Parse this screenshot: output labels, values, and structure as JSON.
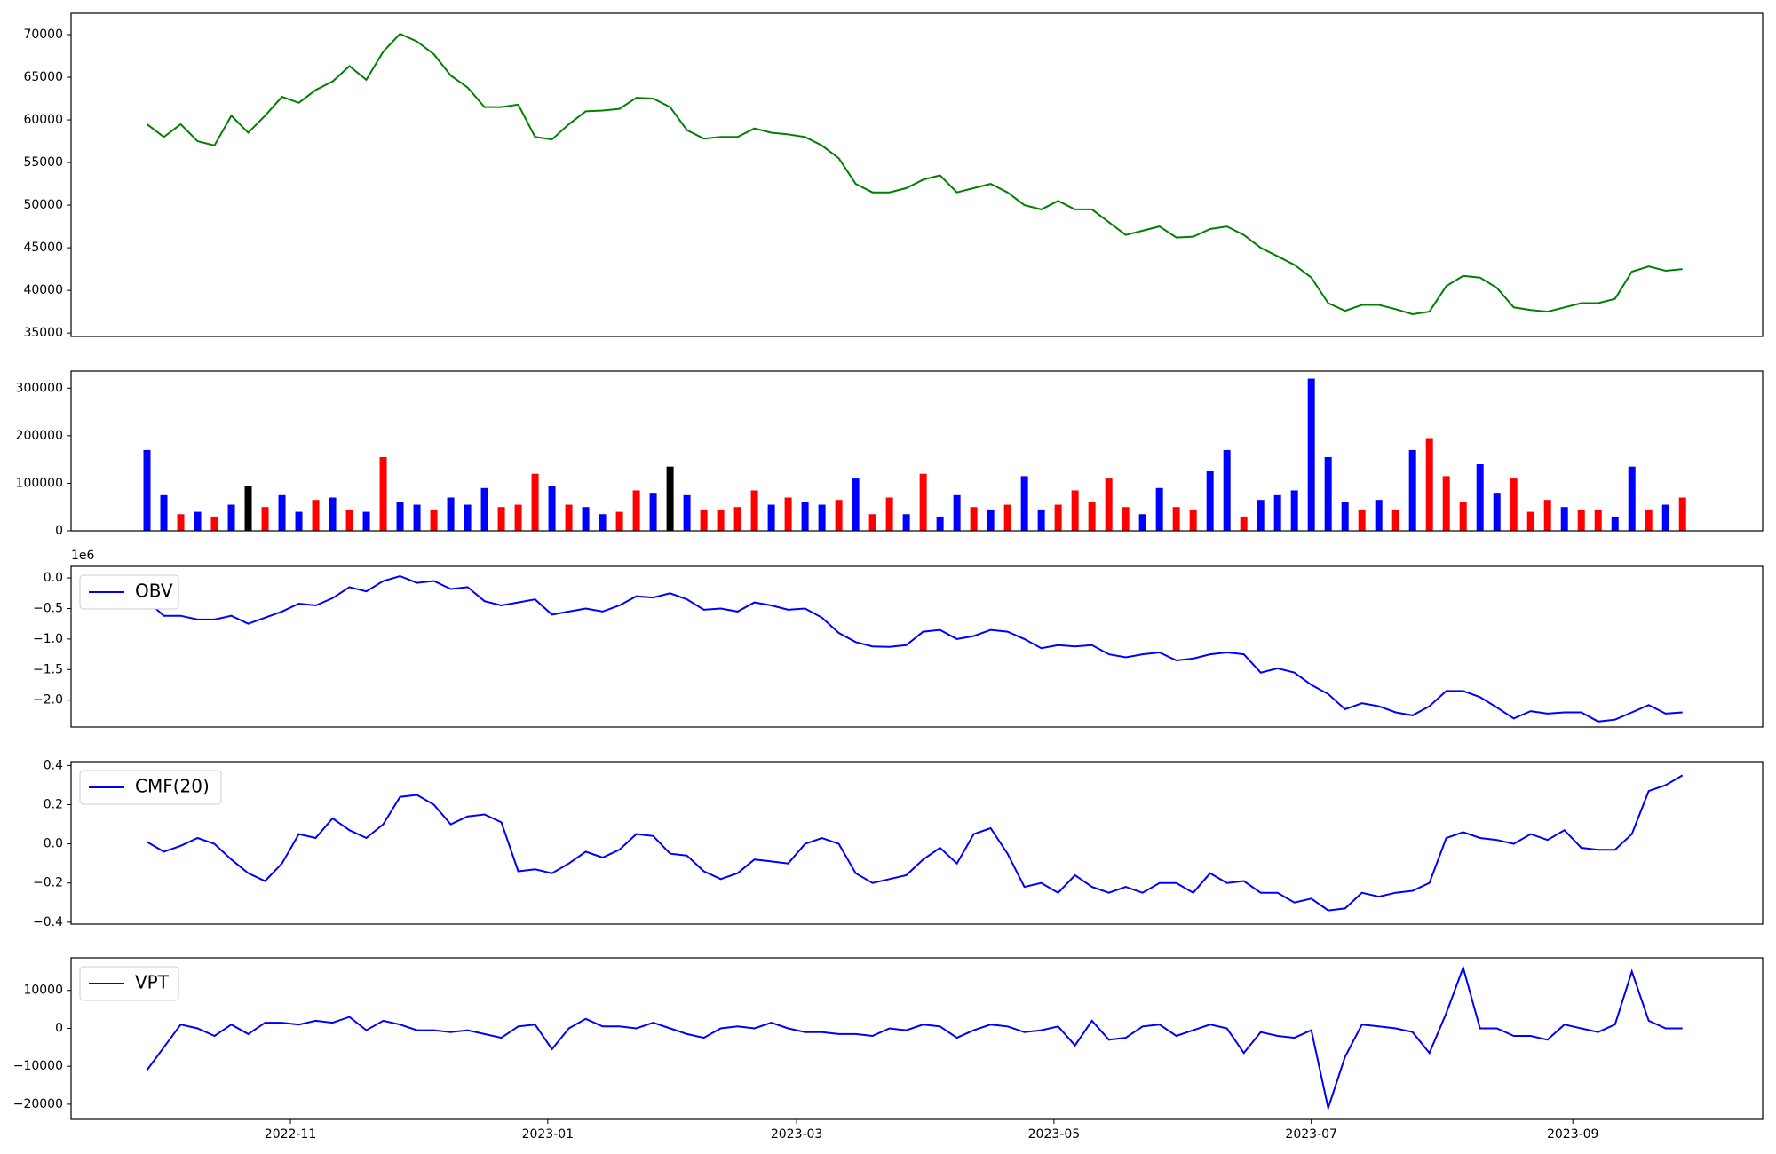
{
  "chart_data": {
    "type": "panels",
    "x": [
      "2022-09-28",
      "2022-10-02",
      "2022-10-06",
      "2022-10-10",
      "2022-10-14",
      "2022-10-18",
      "2022-10-22",
      "2022-10-26",
      "2022-10-30",
      "2022-11-03",
      "2022-11-07",
      "2022-11-11",
      "2022-11-15",
      "2022-11-19",
      "2022-11-23",
      "2022-11-27",
      "2022-12-01",
      "2022-12-05",
      "2022-12-09",
      "2022-12-13",
      "2022-12-17",
      "2022-12-21",
      "2022-12-25",
      "2022-12-29",
      "2023-01-02",
      "2023-01-06",
      "2023-01-10",
      "2023-01-14",
      "2023-01-18",
      "2023-01-22",
      "2023-01-26",
      "2023-01-30",
      "2023-02-03",
      "2023-02-07",
      "2023-02-11",
      "2023-02-15",
      "2023-02-19",
      "2023-02-23",
      "2023-02-27",
      "2023-03-03",
      "2023-03-07",
      "2023-03-11",
      "2023-03-15",
      "2023-03-19",
      "2023-03-23",
      "2023-03-27",
      "2023-03-31",
      "2023-04-04",
      "2023-04-08",
      "2023-04-12",
      "2023-04-16",
      "2023-04-20",
      "2023-04-24",
      "2023-04-28",
      "2023-05-02",
      "2023-05-06",
      "2023-05-10",
      "2023-05-14",
      "2023-05-18",
      "2023-05-22",
      "2023-05-26",
      "2023-05-30",
      "2023-06-03",
      "2023-06-07",
      "2023-06-11",
      "2023-06-15",
      "2023-06-19",
      "2023-06-23",
      "2023-06-27",
      "2023-07-01",
      "2023-07-05",
      "2023-07-09",
      "2023-07-13",
      "2023-07-17",
      "2023-07-21",
      "2023-07-25",
      "2023-07-29",
      "2023-08-02",
      "2023-08-06",
      "2023-08-10",
      "2023-08-14",
      "2023-08-18",
      "2023-08-22",
      "2023-08-26",
      "2023-08-30",
      "2023-09-03",
      "2023-09-07",
      "2023-09-11",
      "2023-09-15",
      "2023-09-19",
      "2023-09-23",
      "2023-09-27"
    ],
    "xlim": [
      "2022-09-10",
      "2023-10-16"
    ],
    "xticks": [
      {
        "value": "2022-11-01",
        "label": "2022-11"
      },
      {
        "value": "2023-01-01",
        "label": "2023-01"
      },
      {
        "value": "2023-03-01",
        "label": "2023-03"
      },
      {
        "value": "2023-05-01",
        "label": "2023-05"
      },
      {
        "value": "2023-07-01",
        "label": "2023-07"
      },
      {
        "value": "2023-09-01",
        "label": "2023-09"
      }
    ],
    "panels": [
      {
        "type": "line",
        "ylim": [
          34600,
          72500
        ],
        "yticks": [
          35000,
          40000,
          45000,
          50000,
          55000,
          60000,
          65000,
          70000
        ],
        "series": [
          {
            "color": "green",
            "values": [
              59500,
              58000,
              59500,
              57500,
              57000,
              60500,
              58500,
              60500,
              62700,
              62000,
              63500,
              64500,
              66300,
              64700,
              68000,
              70100,
              69200,
              67700,
              65200,
              63800,
              61500,
              61500,
              61800,
              58000,
              57700,
              59500,
              61000,
              61100,
              61300,
              62600,
              62500,
              61500,
              58800,
              57800,
              58000,
              58000,
              59000,
              58500,
              58300,
              58000,
              57000,
              55500,
              52500,
              51500,
              51500,
              52000,
              53000,
              53500,
              51500,
              52000,
              52500,
              51500,
              50000,
              49500,
              50500,
              49500,
              49500,
              48000,
              46500,
              47000,
              47500,
              46200,
              46300,
              47200,
              47500,
              46500,
              45000,
              44000,
              43000,
              41500,
              38500,
              37600,
              38300,
              38300,
              37800,
              37200,
              37500,
              40500,
              41700,
              41500,
              40300,
              38000,
              37700,
              37500,
              38000,
              38500,
              38500,
              39000,
              42200,
              42800,
              42300,
              42500
            ]
          }
        ]
      },
      {
        "type": "bar",
        "ylim": [
          0,
          336000
        ],
        "yticks": [
          0,
          100000,
          200000,
          300000
        ],
        "values": [
          170000,
          75000,
          35000,
          40000,
          30000,
          55000,
          95000,
          50000,
          75000,
          40000,
          65000,
          70000,
          45000,
          40000,
          155000,
          60000,
          55000,
          45000,
          70000,
          55000,
          90000,
          50000,
          55000,
          120000,
          95000,
          55000,
          50000,
          35000,
          40000,
          85000,
          80000,
          135000,
          75000,
          45000,
          45000,
          50000,
          85000,
          55000,
          70000,
          60000,
          55000,
          65000,
          110000,
          35000,
          70000,
          35000,
          120000,
          30000,
          75000,
          50000,
          45000,
          55000,
          115000,
          45000,
          55000,
          85000,
          60000,
          110000,
          50000,
          35000,
          90000,
          50000,
          45000,
          125000,
          170000,
          30000,
          65000,
          75000,
          85000,
          320000,
          155000,
          60000,
          45000,
          65000,
          45000,
          170000,
          195000,
          115000,
          60000,
          140000,
          80000,
          110000,
          40000,
          65000,
          50000,
          45000,
          45000,
          30000,
          135000,
          45000,
          55000,
          70000
        ],
        "colors": [
          "blue",
          "blue",
          "red",
          "blue",
          "red",
          "blue",
          "black",
          "red",
          "blue",
          "blue",
          "red",
          "blue",
          "red",
          "blue",
          "red",
          "blue",
          "blue",
          "red",
          "blue",
          "blue",
          "blue",
          "red",
          "red",
          "red",
          "blue",
          "red",
          "blue",
          "blue",
          "red",
          "red",
          "blue",
          "black",
          "blue",
          "red",
          "red",
          "red",
          "red",
          "blue",
          "red",
          "blue",
          "blue",
          "red",
          "blue",
          "red",
          "red",
          "blue",
          "red",
          "blue",
          "blue",
          "red",
          "blue",
          "red",
          "blue",
          "blue",
          "red",
          "red",
          "red",
          "red",
          "red",
          "blue",
          "blue",
          "red",
          "red",
          "blue",
          "blue",
          "red",
          "blue",
          "blue",
          "blue",
          "blue",
          "blue",
          "blue",
          "red",
          "blue",
          "red",
          "blue",
          "red",
          "red",
          "red",
          "blue",
          "blue",
          "red",
          "red",
          "red",
          "blue",
          "red",
          "red",
          "blue",
          "blue",
          "red",
          "blue",
          "red"
        ]
      },
      {
        "type": "line",
        "ylim": [
          -2.44,
          0.19
        ],
        "offset_label": "1e6",
        "legend": "upper left",
        "yticks": [
          {
            "value": 0,
            "label": "0.0"
          },
          {
            "value": -0.5,
            "label": "−0.5"
          },
          {
            "value": -1,
            "label": "−1.0"
          },
          {
            "value": -1.5,
            "label": "−1.5"
          },
          {
            "value": -2,
            "label": "−2.0"
          }
        ],
        "series": [
          {
            "name": "OBV",
            "color": "blue",
            "values": [
              -0.37,
              -0.62,
              -0.62,
              -0.68,
              -0.68,
              -0.62,
              -0.75,
              -0.65,
              -0.55,
              -0.42,
              -0.45,
              -0.33,
              -0.15,
              -0.22,
              -0.05,
              0.03,
              -0.08,
              -0.05,
              -0.18,
              -0.15,
              -0.38,
              -0.45,
              -0.4,
              -0.35,
              -0.6,
              -0.55,
              -0.5,
              -0.55,
              -0.45,
              -0.3,
              -0.32,
              -0.25,
              -0.35,
              -0.52,
              -0.5,
              -0.55,
              -0.4,
              -0.45,
              -0.52,
              -0.5,
              -0.65,
              -0.9,
              -1.05,
              -1.12,
              -1.13,
              -1.1,
              -0.88,
              -0.85,
              -1,
              -0.95,
              -0.85,
              -0.88,
              -1,
              -1.15,
              -1.1,
              -1.12,
              -1.1,
              -1.25,
              -1.3,
              -1.25,
              -1.22,
              -1.35,
              -1.32,
              -1.25,
              -1.22,
              -1.25,
              -1.55,
              -1.48,
              -1.55,
              -1.75,
              -1.9,
              -2.15,
              -2.05,
              -2.1,
              -2.2,
              -2.25,
              -2.1,
              -1.85,
              -1.85,
              -1.95,
              -2.12,
              -2.3,
              -2.18,
              -2.22,
              -2.2,
              -2.2,
              -2.35,
              -2.32,
              -2.2,
              -2.08,
              -2.22,
              -2.2
            ]
          }
        ]
      },
      {
        "type": "line",
        "ylim": [
          -0.41,
          0.42
        ],
        "legend": "upper left",
        "yticks": [
          {
            "value": -0.4,
            "label": "−0.4"
          },
          {
            "value": -0.2,
            "label": "−0.2"
          },
          {
            "value": 0,
            "label": "0.0"
          },
          0.2,
          0.4
        ],
        "series": [
          {
            "name": "CMF(20)",
            "color": "blue",
            "values": [
              0.01,
              -0.04,
              -0.01,
              0.03,
              0,
              -0.08,
              -0.15,
              -0.19,
              -0.1,
              0.05,
              0.03,
              0.13,
              0.07,
              0.03,
              0.1,
              0.24,
              0.25,
              0.2,
              0.1,
              0.14,
              0.15,
              0.11,
              -0.14,
              -0.13,
              -0.15,
              -0.1,
              -0.04,
              -0.07,
              -0.03,
              0.05,
              0.04,
              -0.05,
              -0.06,
              -0.14,
              -0.18,
              -0.15,
              -0.08,
              -0.09,
              -0.1,
              0,
              0.03,
              0,
              -0.15,
              -0.2,
              -0.18,
              -0.16,
              -0.08,
              -0.02,
              -0.1,
              0.05,
              0.08,
              -0.05,
              -0.22,
              -0.2,
              -0.25,
              -0.16,
              -0.22,
              -0.25,
              -0.22,
              -0.25,
              -0.2,
              -0.2,
              -0.25,
              -0.15,
              -0.2,
              -0.19,
              -0.25,
              -0.25,
              -0.3,
              -0.28,
              -0.34,
              -0.33,
              -0.25,
              -0.27,
              -0.25,
              -0.24,
              -0.2,
              0.03,
              0.06,
              0.03,
              0.02,
              0,
              0.05,
              0.02,
              0.07,
              -0.02,
              -0.03,
              -0.03,
              0.05,
              0.27,
              0.3,
              0.35
            ]
          }
        ]
      },
      {
        "type": "line",
        "ylim": [
          -24000,
          18600
        ],
        "legend": "upper left",
        "yticks": [
          {
            "value": -20000,
            "label": "−20000"
          },
          {
            "value": -10000,
            "label": "−10000"
          },
          0,
          10000
        ],
        "series": [
          {
            "name": "VPT",
            "color": "blue",
            "values": [
              -11000,
              -5000,
              1000,
              0,
              -2000,
              1000,
              -1500,
              1500,
              1500,
              1000,
              2000,
              1500,
              3000,
              -500,
              2000,
              1000,
              -500,
              -500,
              -1000,
              -500,
              -1500,
              -2500,
              500,
              1000,
              -5500,
              0,
              2500,
              500,
              500,
              0,
              1500,
              0,
              -1500,
              -2500,
              0,
              500,
              0,
              1500,
              0,
              -1000,
              -1000,
              -1500,
              -1500,
              -2000,
              0,
              -500,
              1000,
              500,
              -2500,
              -500,
              1000,
              500,
              -1000,
              -500,
              500,
              -4500,
              2000,
              -3000,
              -2500,
              500,
              1000,
              -2000,
              -500,
              1000,
              0,
              -6500,
              -1000,
              -2000,
              -2500,
              -500,
              -21000,
              -7500,
              1000,
              500,
              0,
              -1000,
              -6500,
              4000,
              16000,
              0,
              0,
              -2000,
              -2000,
              -3000,
              1000,
              0,
              -1000,
              1000,
              15000,
              2000,
              0,
              0
            ]
          }
        ]
      }
    ]
  }
}
